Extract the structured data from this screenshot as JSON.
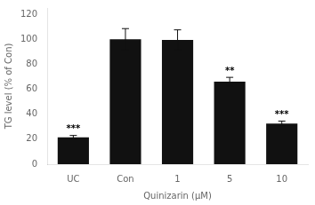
{
  "chart_data": {
    "type": "bar",
    "categories": [
      "UC",
      "Con",
      "1",
      "5",
      "10"
    ],
    "values": [
      21.5,
      100.0,
      99.5,
      66.0,
      32.5
    ],
    "errors": [
      1.5,
      8.5,
      8.0,
      3.5,
      2.0
    ],
    "color": "#111111",
    "annotations": [
      "***",
      null,
      null,
      "**",
      "***"
    ],
    "ylabel": "TG level (% of Con)",
    "xlabel": "Quinizarin (μM)",
    "ylim": [
      0,
      125
    ],
    "yticks": [
      0,
      20,
      40,
      60,
      80,
      100,
      120
    ],
    "grid": false
  }
}
